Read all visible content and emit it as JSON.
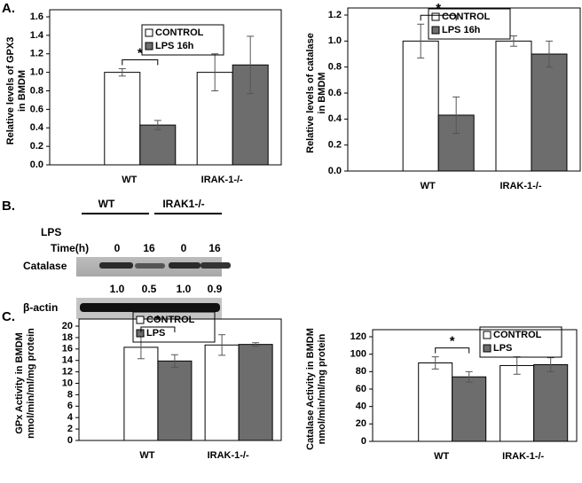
{
  "chart_data": [
    {
      "type": "bar",
      "panel_label": "A.",
      "ylabel": [
        "Relative levels of GPX3",
        "in BMDM"
      ],
      "categories": [
        "WT",
        "IRAK-1-/-"
      ],
      "series": [
        {
          "name": "CONTROL",
          "color": "#ffffff",
          "values": [
            1.0,
            1.0
          ],
          "errors": [
            0.04,
            0.2
          ]
        },
        {
          "name": "LPS 16h",
          "color": "#6d6d6d",
          "values": [
            0.43,
            1.08
          ],
          "errors": [
            0.05,
            0.31
          ]
        }
      ],
      "ylim": [
        0,
        1.6
      ],
      "yticks": [
        {
          "value": 0,
          "label": "0.0"
        },
        0.2,
        0.4,
        0.6,
        0.8,
        {
          "value": 1,
          "label": "1.0"
        },
        1.2,
        1.4,
        1.6
      ],
      "significance": "*"
    },
    {
      "type": "bar",
      "ylabel": [
        "Relative levels of catalase",
        "in BMDM"
      ],
      "categories": [
        "WT",
        "IRAK-1-/-"
      ],
      "series": [
        {
          "name": "CONTROL",
          "color": "#ffffff",
          "values": [
            1.0,
            1.0
          ],
          "errors": [
            0.13,
            0.04
          ]
        },
        {
          "name": "LPS 16h",
          "color": "#6d6d6d",
          "values": [
            0.43,
            0.9
          ],
          "errors": [
            0.14,
            0.1
          ]
        }
      ],
      "ylim": [
        0,
        1.2
      ],
      "yticks": [
        {
          "value": 0,
          "label": "0.0"
        },
        0.2,
        0.4,
        0.6,
        0.8,
        {
          "value": 1,
          "label": "1.0"
        },
        1.2
      ],
      "significance": "*"
    },
    {
      "type": "bar",
      "panel_label": "C.",
      "ylabel": [
        "GPx Activity in BMDM",
        "nmol/min/ml/mg protein"
      ],
      "categories": [
        "WT",
        "IRAK-1-/-"
      ],
      "series": [
        {
          "name": "CONTROL",
          "color": "#ffffff",
          "values": [
            16.3,
            16.7
          ],
          "errors": [
            2.0,
            1.8
          ]
        },
        {
          "name": "LPS",
          "color": "#6d6d6d",
          "values": [
            13.9,
            16.8
          ],
          "errors": [
            1.1,
            0.3
          ]
        }
      ],
      "ylim": [
        0,
        20
      ],
      "yticks": [
        0,
        2,
        4,
        6,
        8,
        10,
        12,
        14,
        16,
        18,
        20
      ],
      "significance": "*"
    },
    {
      "type": "bar",
      "ylabel": [
        "Catalase Activity in BMDM",
        "nmol/min/ml/mg protein"
      ],
      "categories": [
        "WT",
        "IRAK-1-/-"
      ],
      "series": [
        {
          "name": "CONTROL",
          "color": "#ffffff",
          "values": [
            90,
            87
          ],
          "errors": [
            7,
            10
          ]
        },
        {
          "name": "LPS",
          "color": "#6d6d6d",
          "values": [
            74,
            88
          ],
          "errors": [
            6,
            8
          ]
        }
      ],
      "ylim": [
        0,
        120
      ],
      "yticks": [
        0,
        20,
        40,
        60,
        80,
        100,
        120
      ],
      "significance": "*"
    }
  ],
  "blot": {
    "panel_label": "B.",
    "groups": [
      "WT",
      "IRAK1-/-"
    ],
    "row_labels": [
      "LPS",
      "Time(h)"
    ],
    "times": [
      "0",
      "16",
      "0",
      "16"
    ],
    "bands": [
      "Catalase",
      "β-actin"
    ],
    "ratios": [
      "1.0",
      "0.5",
      "1.0",
      "0.9"
    ]
  }
}
